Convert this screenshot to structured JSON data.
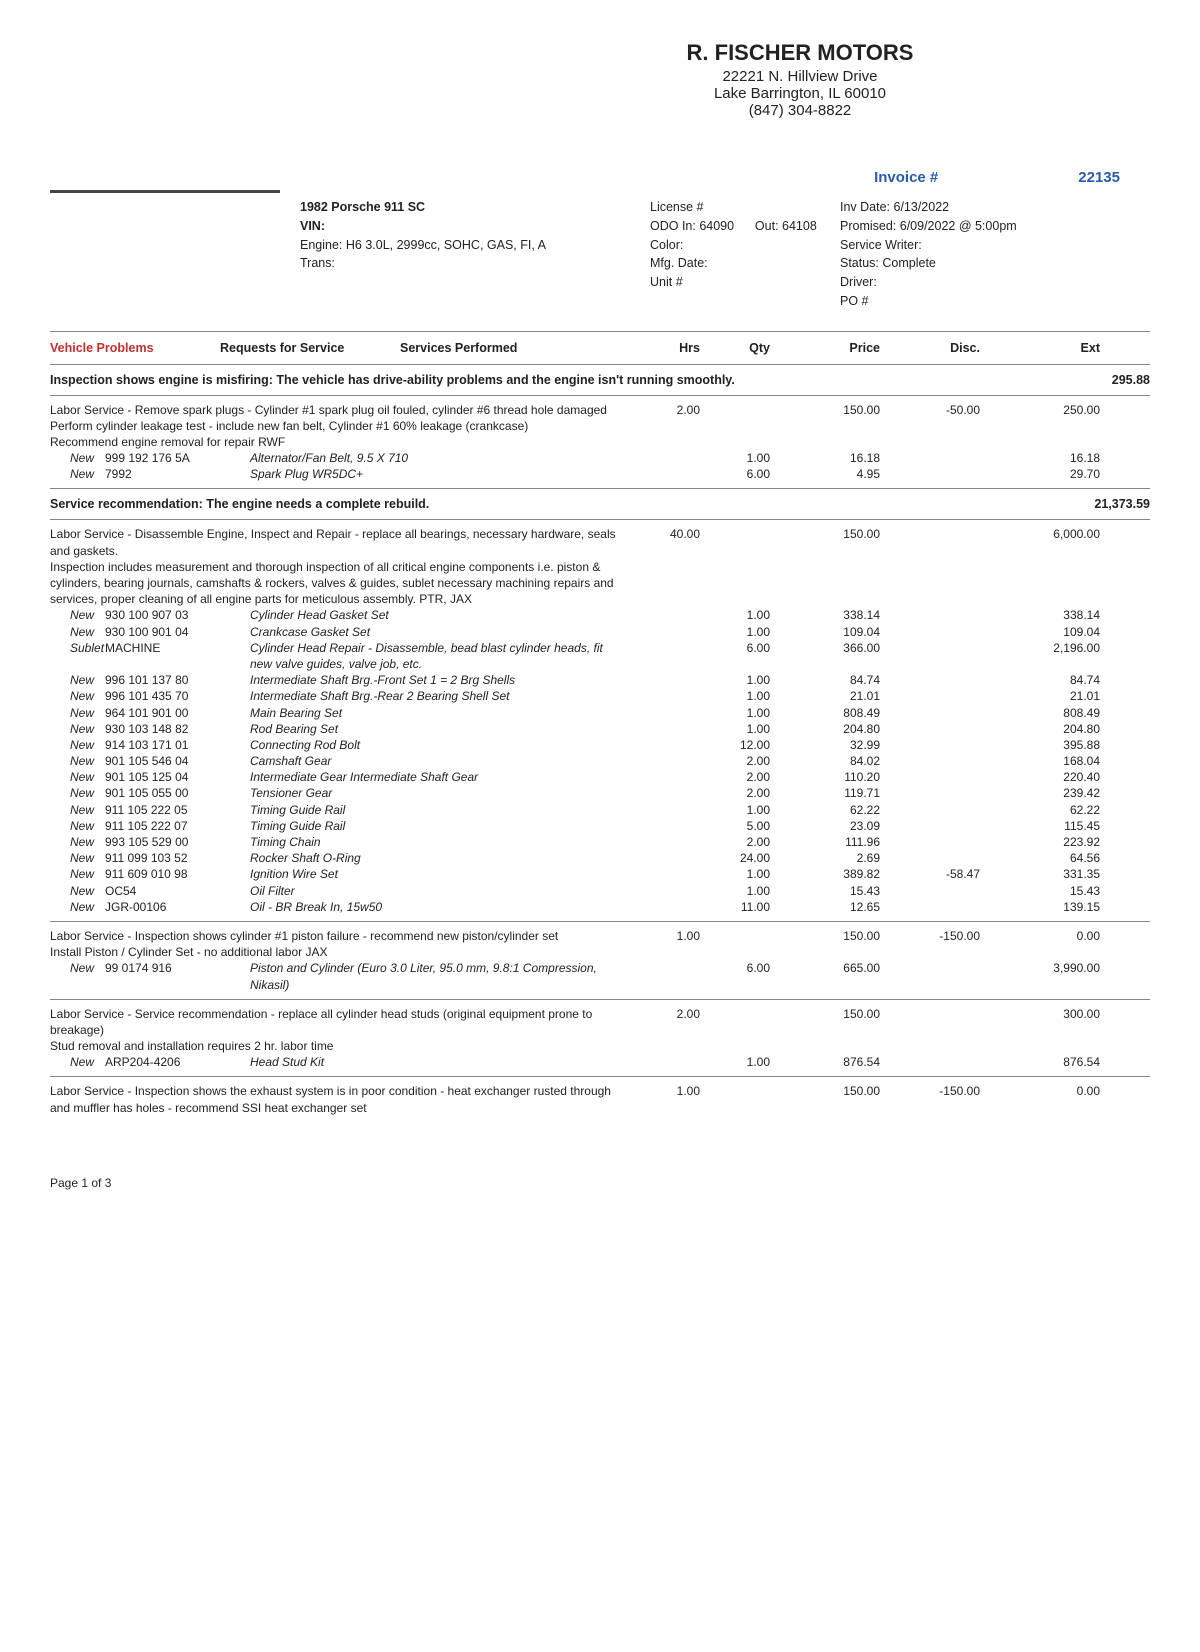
{
  "company": {
    "name": "R. FISCHER MOTORS",
    "addr1": "22221 N. Hillview Drive",
    "addr2": "Lake Barrington, IL 60010",
    "phone": "(847) 304-8822"
  },
  "invoice": {
    "label": "Invoice #",
    "number": "22135"
  },
  "vehicle": {
    "title": "1982 Porsche 911 SC",
    "vin_label": "VIN:",
    "engine": "Engine: H6 3.0L, 2999cc, SOHC, GAS, FI, A",
    "trans": "Trans:",
    "license": "License #",
    "odo": "ODO In: 64090",
    "out": "Out: 64108",
    "color": "Color:",
    "mfg": "Mfg. Date:",
    "unit": "Unit #"
  },
  "meta": {
    "invdate": "Inv Date: 6/13/2022",
    "promised": "Promised: 6/09/2022 @ 5:00pm",
    "writer": "Service Writer:",
    "status": "Status: Complete",
    "driver": "Driver:",
    "po": "PO #"
  },
  "headers": {
    "vp": "Vehicle Problems",
    "rfs": "Requests for Service",
    "sp": "Services Performed",
    "hrs": "Hrs",
    "qty": "Qty",
    "price": "Price",
    "disc": "Disc.",
    "ext": "Ext"
  },
  "section1": {
    "title": "Inspection shows engine is misfiring: The vehicle has drive-ability problems and the engine isn't running smoothly.",
    "total": "295.88",
    "labor": {
      "desc": "Labor Service - Remove spark plugs - Cylinder #1 spark plug oil fouled, cylinder #6 thread hole damaged\nPerform cylinder leakage test - include new fan belt, Cylinder #1 60% leakage (crankcase)\nRecommend engine removal for repair  RWF",
      "hrs": "2.00",
      "price": "150.00",
      "disc": "-50.00",
      "ext": "250.00"
    },
    "parts": [
      {
        "cond": "New",
        "pn": "999 192 176 5A",
        "desc": "Alternator/Fan Belt, 9.5 X 710",
        "qty": "1.00",
        "price": "16.18",
        "ext": "16.18"
      },
      {
        "cond": "New",
        "pn": "7992",
        "desc": "Spark Plug WR5DC+",
        "qty": "6.00",
        "price": "4.95",
        "ext": "29.70"
      }
    ]
  },
  "section2": {
    "title": "Service recommendation: The engine needs a complete rebuild.",
    "total": "21,373.59",
    "labor": {
      "desc": "Labor Service - Disassemble Engine, Inspect and Repair - replace all bearings, necessary hardware, seals and gaskets.\nInspection includes measurement and thorough inspection of all critical engine components i.e. piston & cylinders, bearing journals, camshafts & rockers, valves & guides, sublet necessary machining repairs and services,  proper cleaning of all engine parts for meticulous assembly.  PTR, JAX",
      "hrs": "40.00",
      "price": "150.00",
      "ext": "6,000.00"
    },
    "parts": [
      {
        "cond": "New",
        "pn": "930 100 907 03",
        "desc": "Cylinder Head Gasket Set",
        "qty": "1.00",
        "price": "338.14",
        "ext": "338.14"
      },
      {
        "cond": "New",
        "pn": "930 100 901 04",
        "desc": "Crankcase Gasket Set",
        "qty": "1.00",
        "price": "109.04",
        "ext": "109.04"
      },
      {
        "cond": "Sublet",
        "pn": "MACHINE",
        "desc": "Cylinder Head Repair - Disassemble, bead blast cylinder heads, fit new valve guides, valve job, etc.",
        "qty": "6.00",
        "price": "366.00",
        "ext": "2,196.00"
      },
      {
        "cond": "New",
        "pn": "996 101 137 80",
        "desc": "Intermediate Shaft Brg.-Front Set 1 = 2 Brg Shells",
        "qty": "1.00",
        "price": "84.74",
        "ext": "84.74"
      },
      {
        "cond": "New",
        "pn": "996 101 435 70",
        "desc": "Intermediate Shaft Brg.-Rear 2 Bearing Shell Set",
        "qty": "1.00",
        "price": "21.01",
        "ext": "21.01"
      },
      {
        "cond": "New",
        "pn": "964 101 901 00",
        "desc": "Main Bearing Set",
        "qty": "1.00",
        "price": "808.49",
        "ext": "808.49"
      },
      {
        "cond": "New",
        "pn": "930 103 148 82",
        "desc": "Rod Bearing Set",
        "qty": "1.00",
        "price": "204.80",
        "ext": "204.80"
      },
      {
        "cond": "New",
        "pn": "914 103 171 01",
        "desc": "Connecting Rod Bolt",
        "qty": "12.00",
        "price": "32.99",
        "ext": "395.88"
      },
      {
        "cond": "New",
        "pn": "901 105 546 04",
        "desc": "Camshaft Gear",
        "qty": "2.00",
        "price": "84.02",
        "ext": "168.04"
      },
      {
        "cond": "New",
        "pn": "901 105 125 04",
        "desc": "Intermediate Gear Intermediate Shaft Gear",
        "qty": "2.00",
        "price": "110.20",
        "ext": "220.40"
      },
      {
        "cond": "New",
        "pn": "901 105 055 00",
        "desc": "Tensioner Gear",
        "qty": "2.00",
        "price": "119.71",
        "ext": "239.42"
      },
      {
        "cond": "New",
        "pn": "911 105 222 05",
        "desc": "Timing Guide Rail",
        "qty": "1.00",
        "price": "62.22",
        "ext": "62.22"
      },
      {
        "cond": "New",
        "pn": "911 105 222 07",
        "desc": "Timing Guide Rail",
        "qty": "5.00",
        "price": "23.09",
        "ext": "115.45"
      },
      {
        "cond": "New",
        "pn": "993 105 529 00",
        "desc": "Timing Chain",
        "qty": "2.00",
        "price": "111.96",
        "ext": "223.92"
      },
      {
        "cond": "New",
        "pn": "911 099 103 52",
        "desc": "Rocker Shaft O-Ring",
        "qty": "24.00",
        "price": "2.69",
        "ext": "64.56"
      },
      {
        "cond": "New",
        "pn": "911 609 010 98",
        "desc": "Ignition Wire Set",
        "qty": "1.00",
        "price": "389.82",
        "disc": "-58.47",
        "ext": "331.35"
      },
      {
        "cond": "New",
        "pn": "OC54",
        "desc": "Oil Filter",
        "qty": "1.00",
        "price": "15.43",
        "ext": "15.43"
      },
      {
        "cond": "New",
        "pn": "JGR-00106",
        "desc": "Oil - BR Break In, 15w50",
        "qty": "11.00",
        "price": "12.65",
        "ext": "139.15"
      }
    ],
    "labor2": {
      "desc": "Labor Service - Inspection shows cylinder #1 piston failure - recommend new piston/cylinder set\nInstall Piston / Cylinder Set - no additional labor  JAX",
      "hrs": "1.00",
      "price": "150.00",
      "disc": "-150.00",
      "ext": "0.00"
    },
    "parts2": [
      {
        "cond": "New",
        "pn": "99 0174 916",
        "desc": "Piston and Cylinder (Euro 3.0 Liter, 95.0 mm, 9.8:1 Compression, Nikasil)",
        "qty": "6.00",
        "price": "665.00",
        "ext": "3,990.00"
      }
    ],
    "labor3": {
      "desc": "Labor Service - Service recommendation - replace all cylinder head studs (original equipment prone to breakage)\nStud removal and installation requires 2 hr. labor time",
      "hrs": "2.00",
      "price": "150.00",
      "ext": "300.00"
    },
    "parts3": [
      {
        "cond": "New",
        "pn": "ARP204-4206",
        "desc": "Head Stud Kit",
        "qty": "1.00",
        "price": "876.54",
        "ext": "876.54"
      }
    ],
    "labor4": {
      "desc": "Labor Service - Inspection shows the exhaust system is in poor condition - heat exchanger rusted through and muffler has holes - recommend SSI heat exchanger set",
      "hrs": "1.00",
      "price": "150.00",
      "disc": "-150.00",
      "ext": "0.00"
    }
  },
  "footer": "Page 1 of 3"
}
